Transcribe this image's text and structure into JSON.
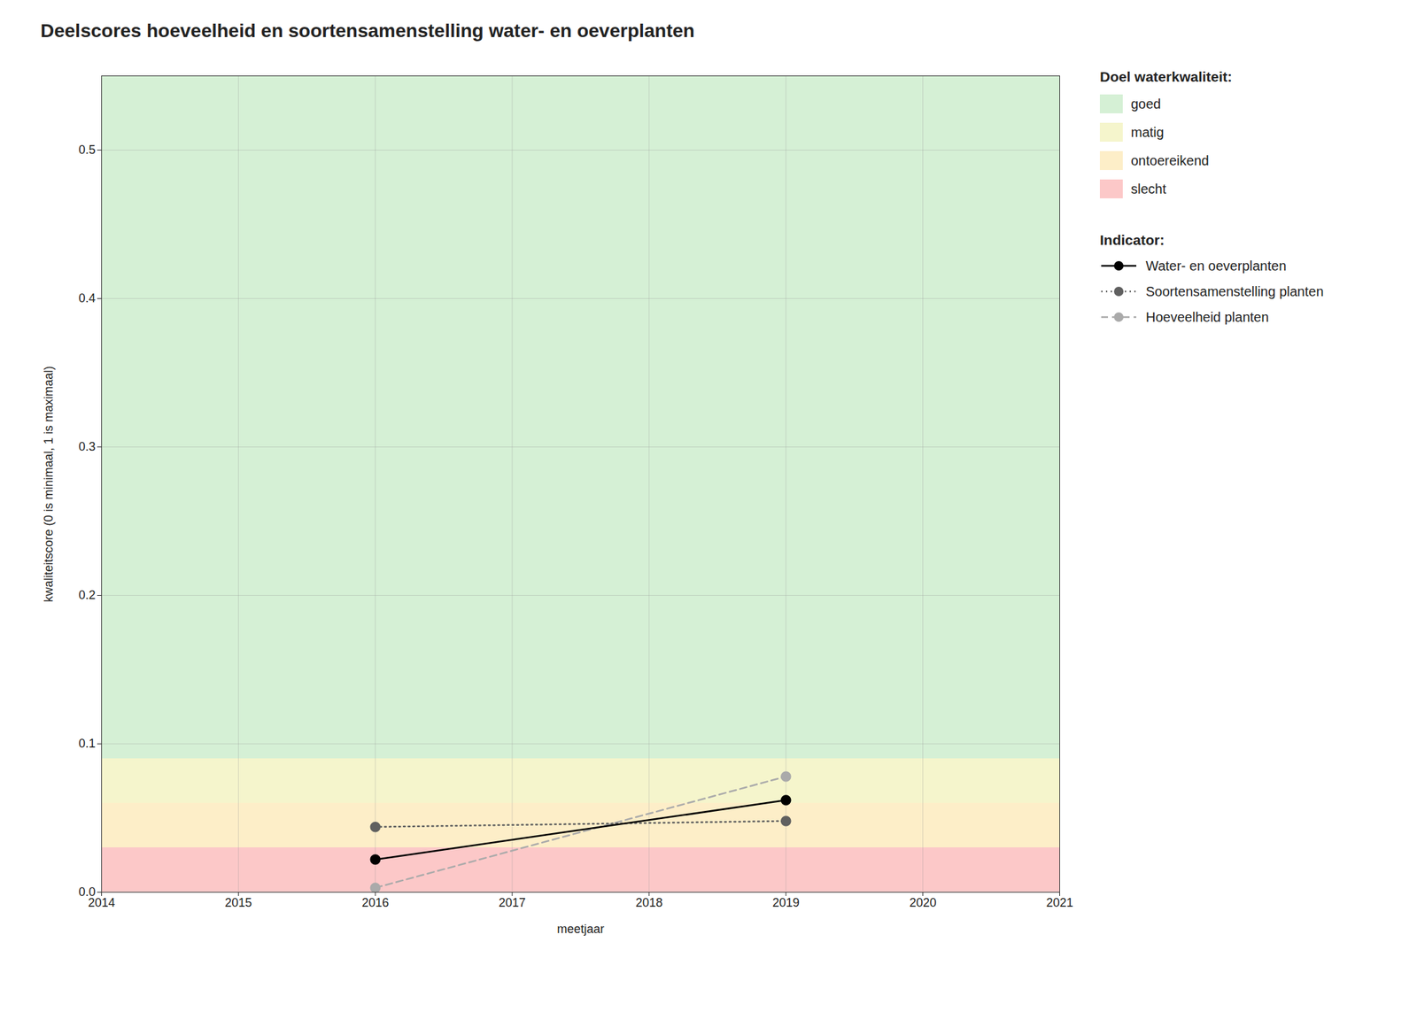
{
  "chart_data": {
    "type": "line",
    "title": "Deelscores hoeveelheid en soortensamenstelling water- en oeverplanten",
    "x_label": "meetjaar",
    "y_label": "kwaliteitscore (0 is minimaal, 1 is maximaal)",
    "x": [
      2016,
      2019
    ],
    "series": [
      {
        "name": "Water- en oeverplanten",
        "color": "black",
        "line_style": "solid",
        "marker": "circle",
        "values": [
          0.022,
          0.062
        ]
      },
      {
        "name": "Soortensamenstelling planten",
        "color": "#606060",
        "line_style": "dotted",
        "marker": "circle",
        "values": [
          0.044,
          0.048
        ]
      },
      {
        "name": "Hoeveelheid planten",
        "color": "#aaaaaa",
        "line_style": "dashed",
        "marker": "circle",
        "values": [
          0.003,
          0.078
        ]
      }
    ],
    "xlim": [
      2014,
      2021
    ],
    "xticks": [
      2014,
      2015,
      2016,
      2017,
      2018,
      2019,
      2020,
      2021
    ],
    "ylim": [
      0,
      0.55
    ],
    "yticks": [
      {
        "value": 0,
        "label": "0.0"
      },
      0.1,
      0.2,
      0.3,
      0.4,
      0.5
    ],
    "grid": true,
    "legend": "right",
    "bands_title": "Doel waterkwaliteit:",
    "bands": [
      {
        "name": "goed",
        "color": "#d5f0d5",
        "range": [
          0.09,
          0.55
        ]
      },
      {
        "name": "matig",
        "color": "#f5f5cc",
        "range": [
          0.06,
          0.09
        ]
      },
      {
        "name": "ontoereikend",
        "color": "#fdeec8",
        "range": [
          0.03,
          0.06
        ]
      },
      {
        "name": "slecht",
        "color": "#fcc8c8",
        "range": [
          0.0,
          0.03
        ]
      }
    ],
    "series_title": "Indicator:"
  }
}
